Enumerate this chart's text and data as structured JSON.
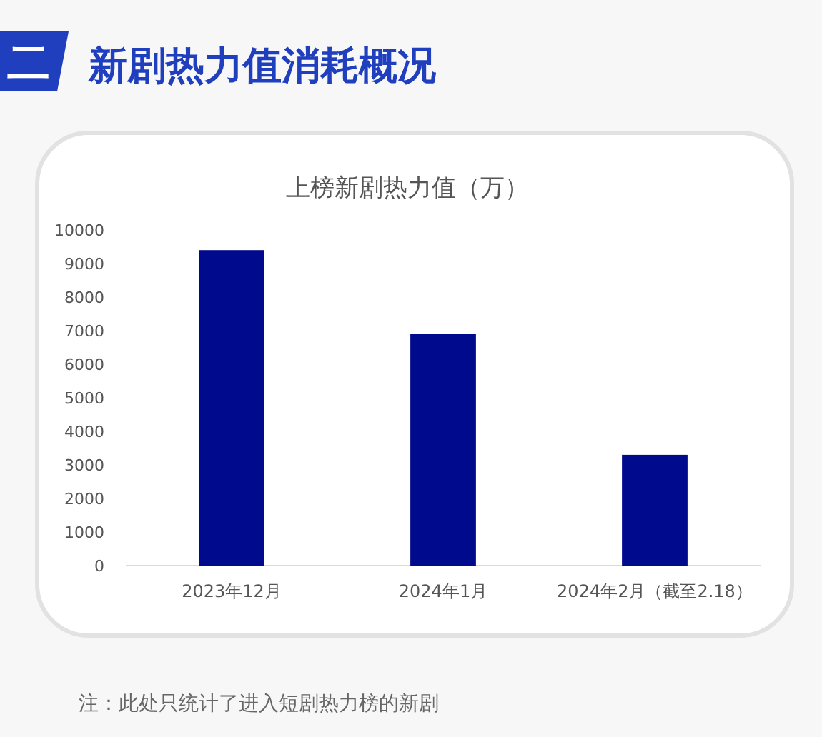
{
  "chart_data": {
    "type": "bar",
    "title": "新剧热力值消耗概况",
    "subtitle": "上榜新剧热力值（万）",
    "categories": [
      "2023年12月",
      "2024年1月",
      "2024年2月（截至2.18）"
    ],
    "values": [
      9400,
      6900,
      3300
    ],
    "color": "#000a8c",
    "ylim": [
      0,
      10000
    ],
    "yticks": [
      0,
      1000,
      2000,
      3000,
      4000,
      5000,
      6000,
      7000,
      8000,
      9000,
      10000
    ],
    "grid": false,
    "annotations": [
      "二",
      "注：此处只统计了进入短剧热力榜的新剧"
    ]
  }
}
